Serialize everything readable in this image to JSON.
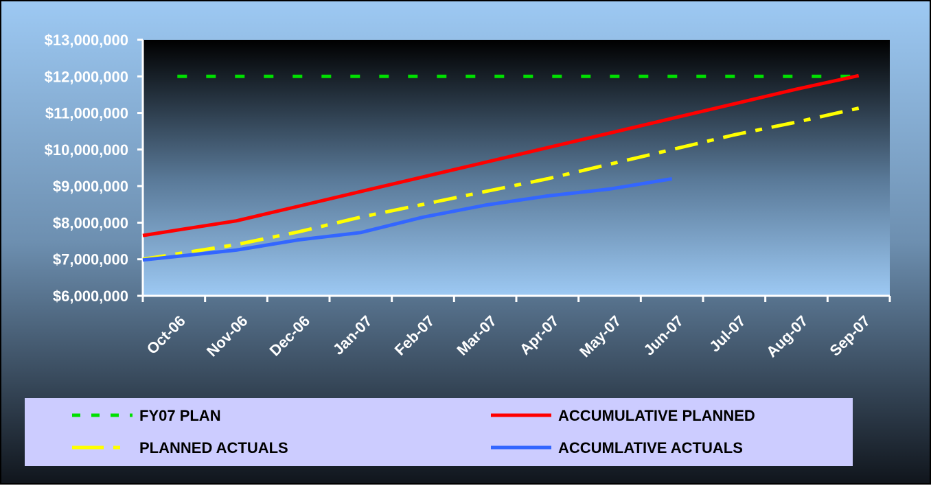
{
  "chart_data": {
    "type": "line",
    "categories": [
      "Oct-06",
      "Nov-06",
      "Dec-06",
      "Jan-07",
      "Feb-07",
      "Mar-07",
      "Apr-07",
      "May-07",
      "Jun-07",
      "Jul-07",
      "Aug-07",
      "Sep-07"
    ],
    "ylim": [
      6000000,
      13000000
    ],
    "yticks": [
      "$6,000,000",
      "$7,000,000",
      "$8,000,000",
      "$9,000,000",
      "$10,000,000",
      "$11,000,000",
      "$12,000,000",
      "$13,000,000"
    ],
    "ytick_values": [
      6000000,
      7000000,
      8000000,
      9000000,
      10000000,
      11000000,
      12000000,
      13000000
    ],
    "series": [
      {
        "name": "FY07 PLAN",
        "color": "#00e000",
        "style": "dashed",
        "values": [
          12000000,
          12000000,
          12000000,
          12000000,
          12000000,
          12000000,
          12000000,
          12000000,
          12000000,
          12000000,
          12000000,
          12000000
        ]
      },
      {
        "name": "ACCUMULATIVE PLANNED",
        "color": "#ff0000",
        "style": "solid",
        "values": [
          7650000,
          8050000,
          8450000,
          8850000,
          9250000,
          9650000,
          10050000,
          10450000,
          10850000,
          11250000,
          11650000,
          12020000
        ]
      },
      {
        "name": "PLANNED ACTUALS",
        "color": "#ffff00",
        "style": "dashdot",
        "values": [
          7000000,
          7400000,
          7750000,
          8150000,
          8500000,
          8850000,
          9200000,
          9600000,
          10000000,
          10400000,
          10750000,
          11130000
        ]
      },
      {
        "name": "ACCUMLATIVE ACTUALS",
        "color": "#3366ff",
        "style": "solid",
        "values": [
          6980000,
          7250000,
          7530000,
          7730000,
          8150000,
          8480000,
          8730000,
          8920000,
          9200000,
          null,
          null,
          null
        ]
      }
    ],
    "legend_position": "bottom",
    "grid": false
  },
  "legend": {
    "items": [
      {
        "label": "FY07 PLAN",
        "color": "#00e000",
        "style": "dashed"
      },
      {
        "label": "ACCUMULATIVE PLANNED",
        "color": "#ff0000",
        "style": "solid"
      },
      {
        "label": "PLANNED ACTUALS",
        "color": "#ffff00",
        "style": "dashdot"
      },
      {
        "label": "ACCUMLATIVE ACTUALS",
        "color": "#3366ff",
        "style": "solid"
      }
    ]
  },
  "colors": {
    "background_top": "#9dc9f3",
    "background_bottom": "#10151c",
    "plot_top": "#000000",
    "plot_bottom": "#9dc9f3",
    "legend_bg": "#ccccff",
    "axis": "#ffffff",
    "tick_label": "#ffffff"
  }
}
